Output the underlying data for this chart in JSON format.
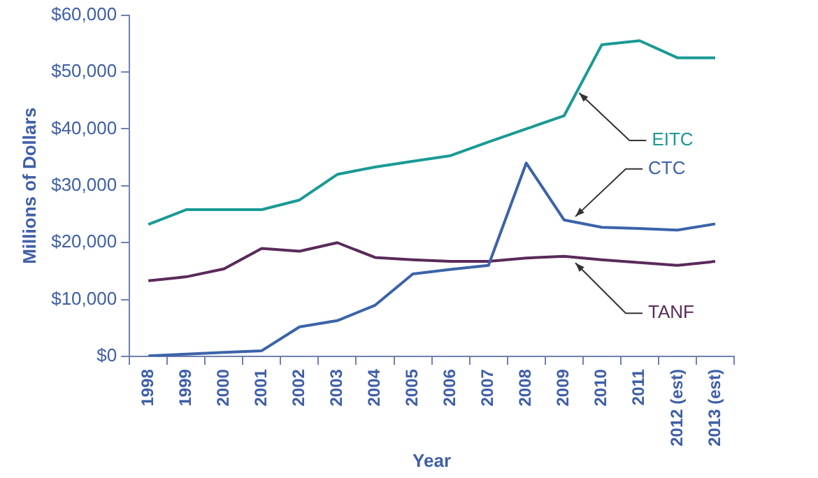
{
  "chart_data": {
    "type": "line",
    "xlabel": "Year",
    "ylabel": "Millions of Dollars",
    "categories": [
      "1998",
      "1999",
      "2000",
      "2001",
      "2002",
      "2003",
      "2004",
      "2005",
      "2006",
      "2007",
      "2008",
      "2009",
      "2010",
      "2011",
      "2012 (est)",
      "2013 (est)"
    ],
    "series": [
      {
        "name": "EITC",
        "color": "#1a9a94",
        "values": [
          23200,
          25800,
          25800,
          25800,
          27500,
          32000,
          33300,
          34300,
          35300,
          37700,
          40000,
          42300,
          54800,
          55500,
          52500,
          52500
        ]
      },
      {
        "name": "CTC",
        "color": "#3b63a8",
        "values": [
          100,
          400,
          700,
          1000,
          5200,
          6300,
          9000,
          14500,
          15300,
          16000,
          34000,
          24000,
          22700,
          22500,
          22200,
          23300
        ]
      },
      {
        "name": "TANF",
        "color": "#5a2a5a",
        "values": [
          13300,
          14000,
          15400,
          19000,
          18500,
          20000,
          17400,
          17000,
          16700,
          16700,
          17300,
          17600,
          17000,
          16500,
          16000,
          16700
        ]
      }
    ],
    "ylim": [
      0,
      60000
    ],
    "yticks": [
      {
        "value": 0,
        "label": "$0"
      },
      {
        "value": 10000,
        "label": "$10,000"
      },
      {
        "value": 20000,
        "label": "$20,000"
      },
      {
        "value": 30000,
        "label": "$30,000"
      },
      {
        "value": 40000,
        "label": "$40,000"
      },
      {
        "value": 50000,
        "label": "$50,000"
      },
      {
        "value": 60000,
        "label": "$60,000"
      }
    ],
    "grid": false,
    "legend": false,
    "marker": "none",
    "line_style": "solid"
  }
}
